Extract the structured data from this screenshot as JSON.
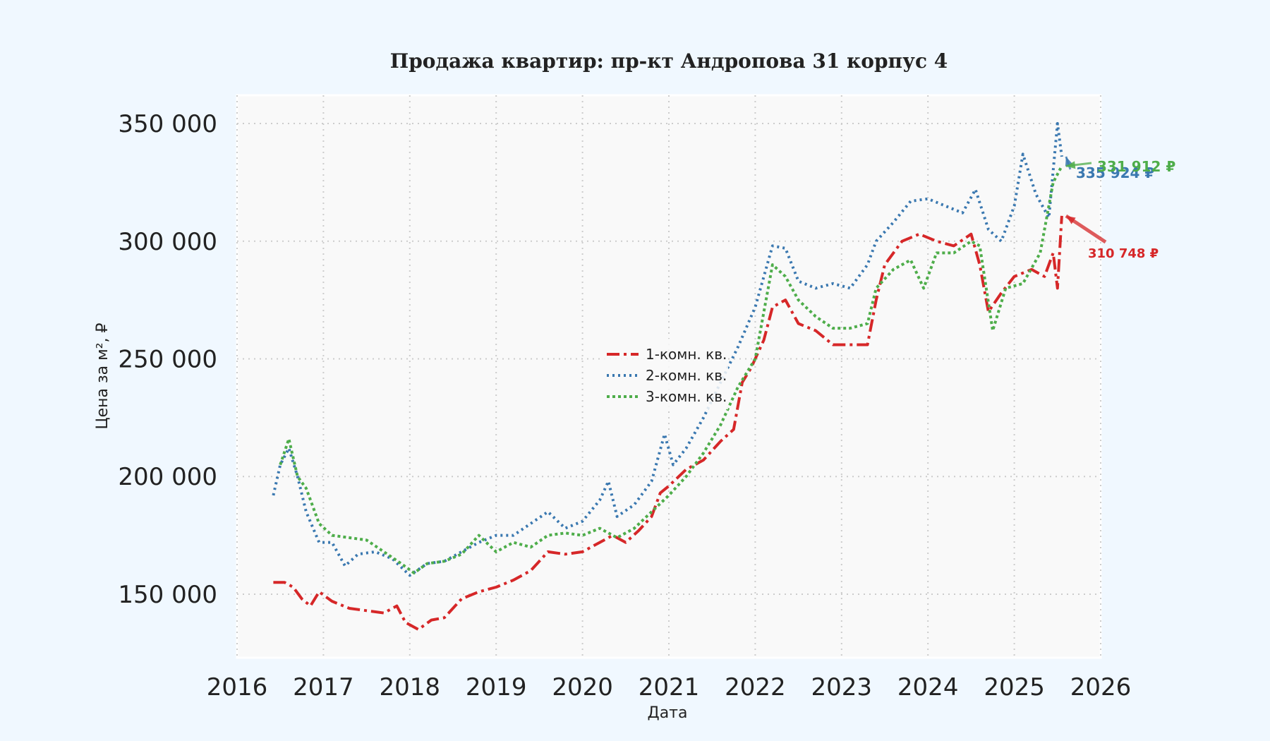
{
  "chart_data": {
    "type": "line",
    "title": "Продажа квартир: пр-кт Андропова 31 корпус 4",
    "xlabel": "Дата",
    "ylabel": "Цена за м², ₽",
    "xlim": [
      2016.0,
      2026.0
    ],
    "ylim": [
      123000,
      362000
    ],
    "x_ticks": [
      "2016",
      "2017",
      "2018",
      "2019",
      "2020",
      "2021",
      "2022",
      "2023",
      "2024",
      "2025",
      "2026"
    ],
    "y_ticks": [
      "150 000",
      "200 000",
      "250 000",
      "300 000",
      "350 000"
    ],
    "y_tick_values": [
      150000,
      200000,
      250000,
      300000,
      350000
    ],
    "grid": true,
    "legend_position": "center",
    "series": [
      {
        "name": "1-комн. кв.",
        "color": "#d62728",
        "dash": "18 6 4 6",
        "points": [
          [
            2016.42,
            155000
          ],
          [
            2016.55,
            155000
          ],
          [
            2016.65,
            153000
          ],
          [
            2016.75,
            148000
          ],
          [
            2016.85,
            145000
          ],
          [
            2016.95,
            151000
          ],
          [
            2017.1,
            147000
          ],
          [
            2017.3,
            144000
          ],
          [
            2017.5,
            143000
          ],
          [
            2017.7,
            142000
          ],
          [
            2017.85,
            145000
          ],
          [
            2017.95,
            138000
          ],
          [
            2018.1,
            135000
          ],
          [
            2018.25,
            139000
          ],
          [
            2018.4,
            140000
          ],
          [
            2018.6,
            148000
          ],
          [
            2018.8,
            151000
          ],
          [
            2019.0,
            153000
          ],
          [
            2019.2,
            156000
          ],
          [
            2019.4,
            160000
          ],
          [
            2019.6,
            168000
          ],
          [
            2019.8,
            167000
          ],
          [
            2020.0,
            168000
          ],
          [
            2020.2,
            172000
          ],
          [
            2020.35,
            175000
          ],
          [
            2020.5,
            172000
          ],
          [
            2020.65,
            177000
          ],
          [
            2020.8,
            183000
          ],
          [
            2020.9,
            193000
          ],
          [
            2021.0,
            196000
          ],
          [
            2021.2,
            203000
          ],
          [
            2021.4,
            207000
          ],
          [
            2021.6,
            215000
          ],
          [
            2021.75,
            220000
          ],
          [
            2021.85,
            240000
          ],
          [
            2021.95,
            246000
          ],
          [
            2022.1,
            258000
          ],
          [
            2022.2,
            272000
          ],
          [
            2022.35,
            275000
          ],
          [
            2022.5,
            265000
          ],
          [
            2022.7,
            262000
          ],
          [
            2022.9,
            256000
          ],
          [
            2023.1,
            256000
          ],
          [
            2023.3,
            256000
          ],
          [
            2023.4,
            275000
          ],
          [
            2023.5,
            290000
          ],
          [
            2023.7,
            300000
          ],
          [
            2023.9,
            303000
          ],
          [
            2024.1,
            300000
          ],
          [
            2024.3,
            298000
          ],
          [
            2024.5,
            303000
          ],
          [
            2024.6,
            290000
          ],
          [
            2024.7,
            270000
          ],
          [
            2024.85,
            278000
          ],
          [
            2025.0,
            285000
          ],
          [
            2025.2,
            288000
          ],
          [
            2025.35,
            285000
          ],
          [
            2025.45,
            295000
          ],
          [
            2025.5,
            280000
          ],
          [
            2025.55,
            310748
          ]
        ]
      },
      {
        "name": "2-комн. кв.",
        "color": "#3a78b0",
        "dash": "3 5",
        "points": [
          [
            2016.42,
            192000
          ],
          [
            2016.5,
            205000
          ],
          [
            2016.6,
            212000
          ],
          [
            2016.7,
            200000
          ],
          [
            2016.8,
            185000
          ],
          [
            2016.95,
            172000
          ],
          [
            2017.1,
            172000
          ],
          [
            2017.25,
            162000
          ],
          [
            2017.4,
            167000
          ],
          [
            2017.6,
            168000
          ],
          [
            2017.8,
            165000
          ],
          [
            2018.0,
            158000
          ],
          [
            2018.2,
            163000
          ],
          [
            2018.4,
            164000
          ],
          [
            2018.6,
            168000
          ],
          [
            2018.8,
            172000
          ],
          [
            2019.0,
            175000
          ],
          [
            2019.2,
            175000
          ],
          [
            2019.4,
            180000
          ],
          [
            2019.6,
            185000
          ],
          [
            2019.8,
            178000
          ],
          [
            2020.0,
            181000
          ],
          [
            2020.2,
            190000
          ],
          [
            2020.3,
            198000
          ],
          [
            2020.4,
            183000
          ],
          [
            2020.6,
            188000
          ],
          [
            2020.8,
            198000
          ],
          [
            2020.95,
            218000
          ],
          [
            2021.05,
            205000
          ],
          [
            2021.2,
            212000
          ],
          [
            2021.4,
            225000
          ],
          [
            2021.6,
            240000
          ],
          [
            2021.8,
            255000
          ],
          [
            2022.0,
            272000
          ],
          [
            2022.2,
            298000
          ],
          [
            2022.35,
            297000
          ],
          [
            2022.5,
            283000
          ],
          [
            2022.7,
            280000
          ],
          [
            2022.9,
            282000
          ],
          [
            2023.1,
            280000
          ],
          [
            2023.3,
            290000
          ],
          [
            2023.4,
            300000
          ],
          [
            2023.6,
            308000
          ],
          [
            2023.8,
            317000
          ],
          [
            2024.0,
            318000
          ],
          [
            2024.2,
            315000
          ],
          [
            2024.4,
            312000
          ],
          [
            2024.55,
            322000
          ],
          [
            2024.7,
            305000
          ],
          [
            2024.85,
            300000
          ],
          [
            2025.0,
            315000
          ],
          [
            2025.1,
            337000
          ],
          [
            2025.25,
            320000
          ],
          [
            2025.4,
            310000
          ],
          [
            2025.5,
            350000
          ],
          [
            2025.55,
            335924
          ]
        ]
      },
      {
        "name": "3-комн. кв.",
        "color": "#4ead4a",
        "dash": "4 4",
        "points": [
          [
            2016.5,
            205000
          ],
          [
            2016.6,
            216000
          ],
          [
            2016.7,
            200000
          ],
          [
            2016.8,
            195000
          ],
          [
            2016.95,
            180000
          ],
          [
            2017.1,
            175000
          ],
          [
            2017.3,
            174000
          ],
          [
            2017.5,
            173000
          ],
          [
            2017.7,
            168000
          ],
          [
            2017.9,
            163000
          ],
          [
            2018.05,
            159000
          ],
          [
            2018.2,
            163000
          ],
          [
            2018.4,
            164000
          ],
          [
            2018.6,
            167000
          ],
          [
            2018.8,
            175000
          ],
          [
            2019.0,
            168000
          ],
          [
            2019.2,
            172000
          ],
          [
            2019.4,
            170000
          ],
          [
            2019.6,
            175000
          ],
          [
            2019.8,
            176000
          ],
          [
            2020.0,
            175000
          ],
          [
            2020.2,
            178000
          ],
          [
            2020.4,
            174000
          ],
          [
            2020.6,
            178000
          ],
          [
            2020.8,
            185000
          ],
          [
            2021.0,
            192000
          ],
          [
            2021.2,
            200000
          ],
          [
            2021.4,
            210000
          ],
          [
            2021.6,
            222000
          ],
          [
            2021.8,
            238000
          ],
          [
            2022.0,
            250000
          ],
          [
            2022.2,
            290000
          ],
          [
            2022.35,
            285000
          ],
          [
            2022.5,
            275000
          ],
          [
            2022.7,
            268000
          ],
          [
            2022.9,
            263000
          ],
          [
            2023.1,
            263000
          ],
          [
            2023.3,
            265000
          ],
          [
            2023.4,
            280000
          ],
          [
            2023.6,
            288000
          ],
          [
            2023.8,
            292000
          ],
          [
            2023.95,
            280000
          ],
          [
            2024.1,
            295000
          ],
          [
            2024.3,
            295000
          ],
          [
            2024.5,
            300000
          ],
          [
            2024.6,
            298000
          ],
          [
            2024.75,
            262000
          ],
          [
            2024.9,
            280000
          ],
          [
            2025.1,
            282000
          ],
          [
            2025.3,
            295000
          ],
          [
            2025.45,
            325000
          ],
          [
            2025.55,
            331912
          ]
        ]
      }
    ],
    "annotations": [
      {
        "text": "310 748 ₽",
        "color": "#d62728",
        "x": 2025.55,
        "y": 310748
      },
      {
        "text": "335 924 ₽",
        "color": "#3a78b0",
        "x": 2025.55,
        "y": 335924
      },
      {
        "text": "331 912 ₽",
        "color": "#4ead4a",
        "x": 2025.55,
        "y": 331912
      }
    ]
  }
}
